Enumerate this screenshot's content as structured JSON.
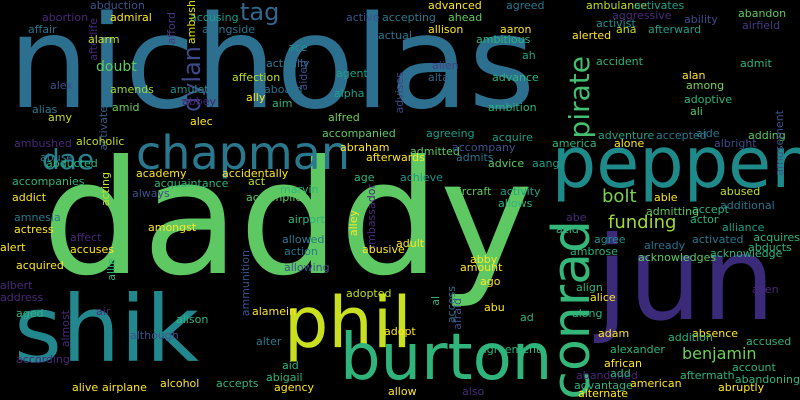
{
  "words": [
    {
      "text": "nicholas",
      "color": "#2d6f8e"
    },
    {
      "text": "daddy",
      "color": "#5ec962"
    },
    {
      "text": "pepper",
      "color": "#1f8a8a"
    },
    {
      "text": "jun",
      "color": "#3b2a7a"
    },
    {
      "text": "shik",
      "color": "#23888e"
    },
    {
      "text": "phil",
      "color": "#c9e020"
    },
    {
      "text": "burton",
      "color": "#2fb47c"
    },
    {
      "text": "chapman",
      "color": "#2a788e"
    },
    {
      "text": "conrad",
      "color": "#35b779"
    },
    {
      "text": "dae",
      "color": "#26828e"
    },
    {
      "text": "pirate",
      "color": "#44bf70"
    },
    {
      "text": "dylan",
      "color": "#3e4989"
    },
    {
      "text": "tag",
      "color": "#31688e"
    },
    {
      "text": "bolt",
      "color": "#7ad151"
    },
    {
      "text": "funding",
      "color": "#9fda3a"
    },
    {
      "text": "benjamin",
      "color": "#6ece58"
    },
    {
      "text": "doubt",
      "color": "#5ec962"
    },
    {
      "text": "abduction",
      "color": "#3b528b"
    },
    {
      "text": "abortion",
      "color": "#482878"
    },
    {
      "text": "admiral",
      "color": "#fde725"
    },
    {
      "text": "accusing",
      "color": "#1f9e89"
    },
    {
      "text": "alongside",
      "color": "#2c728e"
    },
    {
      "text": "ambush",
      "color": "#dde318"
    },
    {
      "text": "advanced",
      "color": "#fde725"
    },
    {
      "text": "agreed",
      "color": "#2a788e"
    },
    {
      "text": "ambulance",
      "color": "#c2df23"
    },
    {
      "text": "activates",
      "color": "#1fa187"
    },
    {
      "text": "abandon",
      "color": "#5ec962"
    },
    {
      "text": "affair",
      "color": "#2c728e"
    },
    {
      "text": "afterlife",
      "color": "#482878"
    },
    {
      "text": "airfield",
      "color": "#443983"
    },
    {
      "text": "aggressive",
      "color": "#472c7a"
    },
    {
      "text": "ability",
      "color": "#3e4a89"
    },
    {
      "text": "accepting",
      "color": "#2a788e"
    },
    {
      "text": "ahead",
      "color": "#5ec962"
    },
    {
      "text": "active",
      "color": "#3b528b"
    },
    {
      "text": "allison",
      "color": "#fde725"
    },
    {
      "text": "aaron",
      "color": "#fde725"
    },
    {
      "text": "ambitious",
      "color": "#2fb47c"
    },
    {
      "text": "activist",
      "color": "#21918c"
    },
    {
      "text": "ana",
      "color": "#c2df23"
    },
    {
      "text": "afterward",
      "color": "#1f9e89"
    },
    {
      "text": "alarm",
      "color": "#c2df23"
    },
    {
      "text": "ace",
      "color": "#21918c"
    },
    {
      "text": "afford",
      "color": "#453781"
    },
    {
      "text": "actual",
      "color": "#2c728e"
    },
    {
      "text": "alerted",
      "color": "#fde725"
    },
    {
      "text": "ah",
      "color": "#1fa187"
    },
    {
      "text": "alien",
      "color": "#433e85"
    },
    {
      "text": "altar",
      "color": "#31688e"
    },
    {
      "text": "agent",
      "color": "#1fa187"
    },
    {
      "text": "advance",
      "color": "#2fb47c"
    },
    {
      "text": "accident",
      "color": "#2fb47c"
    },
    {
      "text": "alan",
      "color": "#fde725"
    },
    {
      "text": "among",
      "color": "#7ad151"
    },
    {
      "text": "admit",
      "color": "#2fb47c"
    },
    {
      "text": "alex",
      "color": "#3b528b"
    },
    {
      "text": "amends",
      "color": "#9fda3a"
    },
    {
      "text": "amulet",
      "color": "#21918c"
    },
    {
      "text": "abbey",
      "color": "#481f70"
    },
    {
      "text": "affection",
      "color": "#bddf26"
    },
    {
      "text": "actually",
      "color": "#2a788e"
    },
    {
      "text": "aboard",
      "color": "#2c728e"
    },
    {
      "text": "aided",
      "color": "#3e4a89"
    },
    {
      "text": "advises",
      "color": "#414487"
    },
    {
      "text": "alpha",
      "color": "#1fa187"
    },
    {
      "text": "adoptive",
      "color": "#2fb47c"
    },
    {
      "text": "ali",
      "color": "#5ec962"
    },
    {
      "text": "alias",
      "color": "#2a788e"
    },
    {
      "text": "amid",
      "color": "#6ece58"
    },
    {
      "text": "activate",
      "color": "#355f8d"
    },
    {
      "text": "ally",
      "color": "#fde725"
    },
    {
      "text": "aim",
      "color": "#2fb47c"
    },
    {
      "text": "ambition",
      "color": "#2fb47c"
    },
    {
      "text": "amy",
      "color": "#c2df23"
    },
    {
      "text": "alec",
      "color": "#fde725"
    },
    {
      "text": "alfred",
      "color": "#6ece58"
    },
    {
      "text": "aide",
      "color": "#2a788e"
    },
    {
      "text": "adding",
      "color": "#5ec962"
    },
    {
      "text": "amusement",
      "color": "#3b528b"
    },
    {
      "text": "ambushed",
      "color": "#482878"
    },
    {
      "text": "abducted",
      "color": "#2fb47c"
    },
    {
      "text": "alcoholic",
      "color": "#c2df23"
    },
    {
      "text": "accompanied",
      "color": "#5ec962"
    },
    {
      "text": "agreeing",
      "color": "#1f9e89"
    },
    {
      "text": "acquire",
      "color": "#1f9e89"
    },
    {
      "text": "adventure",
      "color": "#1fa187"
    },
    {
      "text": "accepted",
      "color": "#2a788e"
    },
    {
      "text": "albright",
      "color": "#3e4a89"
    },
    {
      "text": "abraham",
      "color": "#fde725"
    },
    {
      "text": "admitted",
      "color": "#5ec962"
    },
    {
      "text": "accompany",
      "color": "#3b528b"
    },
    {
      "text": "america",
      "color": "#2fb47c"
    },
    {
      "text": "alone",
      "color": "#fde725"
    },
    {
      "text": "abuse",
      "color": "#2a788e"
    },
    {
      "text": "afterwards",
      "color": "#fde725"
    },
    {
      "text": "admits",
      "color": "#2c728e"
    },
    {
      "text": "advice",
      "color": "#5ec962"
    },
    {
      "text": "aang",
      "color": "#1f9e89"
    },
    {
      "text": "academy",
      "color": "#fde725"
    },
    {
      "text": "accidentally",
      "color": "#fde725"
    },
    {
      "text": "age",
      "color": "#2fb47c"
    },
    {
      "text": "achieve",
      "color": "#21918c"
    },
    {
      "text": "activity",
      "color": "#1fa187"
    },
    {
      "text": "abused",
      "color": "#c2df23"
    },
    {
      "text": "accompanies",
      "color": "#2fb47c"
    },
    {
      "text": "acting",
      "color": "#c2df23"
    },
    {
      "text": "always",
      "color": "#3b528b"
    },
    {
      "text": "acquaintance",
      "color": "#2fb47c"
    },
    {
      "text": "act",
      "color": "#c2df23"
    },
    {
      "text": "ambassador",
      "color": "#482878"
    },
    {
      "text": "aircraft",
      "color": "#5ec962"
    },
    {
      "text": "allows",
      "color": "#2fb47c"
    },
    {
      "text": "able",
      "color": "#fde725"
    },
    {
      "text": "accept",
      "color": "#2fb47c"
    },
    {
      "text": "additional",
      "color": "#2c728e"
    },
    {
      "text": "addict",
      "color": "#fde725"
    },
    {
      "text": "accomplice",
      "color": "#5ec962"
    },
    {
      "text": "marvin",
      "color": "#2fb47c"
    },
    {
      "text": "admitting",
      "color": "#5ec962"
    },
    {
      "text": "alliance",
      "color": "#1f9e89"
    },
    {
      "text": "amnesia",
      "color": "#2a788e"
    },
    {
      "text": "actress",
      "color": "#fde725"
    },
    {
      "text": "amongst",
      "color": "#fde725"
    },
    {
      "text": "airport",
      "color": "#2fb47c"
    },
    {
      "text": "abe",
      "color": "#482878"
    },
    {
      "text": "acid",
      "color": "#2fb47c"
    },
    {
      "text": "actor",
      "color": "#2fb47c"
    },
    {
      "text": "acquires",
      "color": "#2fb47c"
    },
    {
      "text": "alert",
      "color": "#fde725"
    },
    {
      "text": "affect",
      "color": "#482878"
    },
    {
      "text": "allowed",
      "color": "#2a788e"
    },
    {
      "text": "action",
      "color": "#2a788e"
    },
    {
      "text": "adult",
      "color": "#fde725"
    },
    {
      "text": "agree",
      "color": "#21918c"
    },
    {
      "text": "already",
      "color": "#2c728e"
    },
    {
      "text": "activated",
      "color": "#2a788e"
    },
    {
      "text": "abducts",
      "color": "#2fb47c"
    },
    {
      "text": "accuses",
      "color": "#fde725"
    },
    {
      "text": "ambrose",
      "color": "#2fb47c"
    },
    {
      "text": "abby",
      "color": "#fde725"
    },
    {
      "text": "acknowledges",
      "color": "#5ec962"
    },
    {
      "text": "acknowledge",
      "color": "#2fb47c"
    },
    {
      "text": "acquired",
      "color": "#fde725"
    },
    {
      "text": "allie",
      "color": "#2fb47c"
    },
    {
      "text": "allowing",
      "color": "#3b528b"
    },
    {
      "text": "amount",
      "color": "#fde725"
    },
    {
      "text": "ago",
      "color": "#fde725"
    },
    {
      "text": "alley",
      "color": "#fde725"
    },
    {
      "text": "abusive",
      "color": "#fde725"
    },
    {
      "text": "ammunition",
      "color": "#3b528b"
    },
    {
      "text": "address",
      "color": "#482878"
    },
    {
      "text": "albert",
      "color": "#482878"
    },
    {
      "text": "adopted",
      "color": "#c2df23"
    },
    {
      "text": "align",
      "color": "#2fb47c"
    },
    {
      "text": "alice",
      "color": "#fde725"
    },
    {
      "text": "allen",
      "color": "#482878"
    },
    {
      "text": "air",
      "color": "#482878"
    },
    {
      "text": "alamein",
      "color": "#fde725"
    },
    {
      "text": "aged",
      "color": "#2fb47c"
    },
    {
      "text": "alison",
      "color": "#2fb47c"
    },
    {
      "text": "adopt",
      "color": "#fde725"
    },
    {
      "text": "abu",
      "color": "#fde725"
    },
    {
      "text": "ad",
      "color": "#2fb47c"
    },
    {
      "text": "along",
      "color": "#2fb47c"
    },
    {
      "text": "absence",
      "color": "#fde725"
    },
    {
      "text": "accused",
      "color": "#2fb47c"
    },
    {
      "text": "al",
      "color": "#2fb47c"
    },
    {
      "text": "afraid",
      "color": "#3b528b"
    },
    {
      "text": "access",
      "color": "#2c728e"
    },
    {
      "text": "alter",
      "color": "#2a788e"
    },
    {
      "text": "almost",
      "color": "#482878"
    },
    {
      "text": "although",
      "color": "#3b528b"
    },
    {
      "text": "adam",
      "color": "#fde725"
    },
    {
      "text": "addition",
      "color": "#2fb47c"
    },
    {
      "text": "according",
      "color": "#482878"
    },
    {
      "text": "aid",
      "color": "#2fb47c"
    },
    {
      "text": "agreement",
      "color": "#2fb47c"
    },
    {
      "text": "alexander",
      "color": "#2fb47c"
    },
    {
      "text": "alive",
      "color": "#fde725"
    },
    {
      "text": "abigail",
      "color": "#2fb47c"
    },
    {
      "text": "abandoned",
      "color": "#482878"
    },
    {
      "text": "add",
      "color": "#2fb47c"
    },
    {
      "text": "african",
      "color": "#fde725"
    },
    {
      "text": "account",
      "color": "#2fb47c"
    },
    {
      "text": "airplane",
      "color": "#fde725"
    },
    {
      "text": "alcohol",
      "color": "#fde725"
    },
    {
      "text": "accepts",
      "color": "#2fb47c"
    },
    {
      "text": "agency",
      "color": "#fde725"
    },
    {
      "text": "advantage",
      "color": "#2fb47c"
    },
    {
      "text": "aftermath",
      "color": "#2fb47c"
    },
    {
      "text": "abandoning",
      "color": "#2fb47c"
    },
    {
      "text": "allow",
      "color": "#fde725"
    },
    {
      "text": "also",
      "color": "#482878"
    },
    {
      "text": "alternate",
      "color": "#fde725"
    },
    {
      "text": "american",
      "color": "#fde725"
    },
    {
      "text": "abruptly",
      "color": "#fde725"
    },
    {
      "text": "across",
      "color": "#482878"
    }
  ]
}
